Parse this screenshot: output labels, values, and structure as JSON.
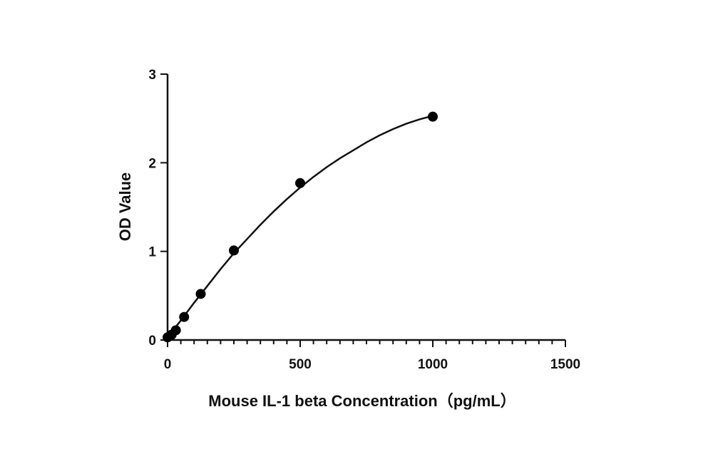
{
  "chart_data": {
    "type": "scatter",
    "title": "",
    "xlabel": "Mouse IL-1 beta Concentration（pg/mL）",
    "ylabel": "OD Value",
    "xlim": [
      0,
      1500
    ],
    "ylim": [
      0,
      3
    ],
    "x_ticks": [
      0,
      500,
      1000,
      1500
    ],
    "y_ticks": [
      0,
      1,
      2,
      3
    ],
    "x_minor_step": 50,
    "grid": false,
    "legend": "none",
    "colors": {
      "marker": "#000000",
      "curve": "#111111",
      "axis": "#111111"
    },
    "series": [
      {
        "x": [
          0,
          15.6,
          31.25,
          62.5,
          125,
          250,
          500,
          1000
        ],
        "y": [
          0.03,
          0.06,
          0.11,
          0.26,
          0.52,
          1.01,
          1.77,
          2.52
        ]
      }
    ],
    "fit_curve": {
      "x": [
        0,
        50,
        100,
        150,
        200,
        250,
        300,
        350,
        400,
        450,
        500,
        550,
        600,
        650,
        700,
        750,
        800,
        850,
        900,
        950,
        1000
      ],
      "y": [
        0.03,
        0.22,
        0.42,
        0.61,
        0.8,
        0.98,
        1.14,
        1.3,
        1.45,
        1.59,
        1.72,
        1.84,
        1.95,
        2.05,
        2.14,
        2.23,
        2.31,
        2.38,
        2.44,
        2.49,
        2.53
      ]
    }
  }
}
